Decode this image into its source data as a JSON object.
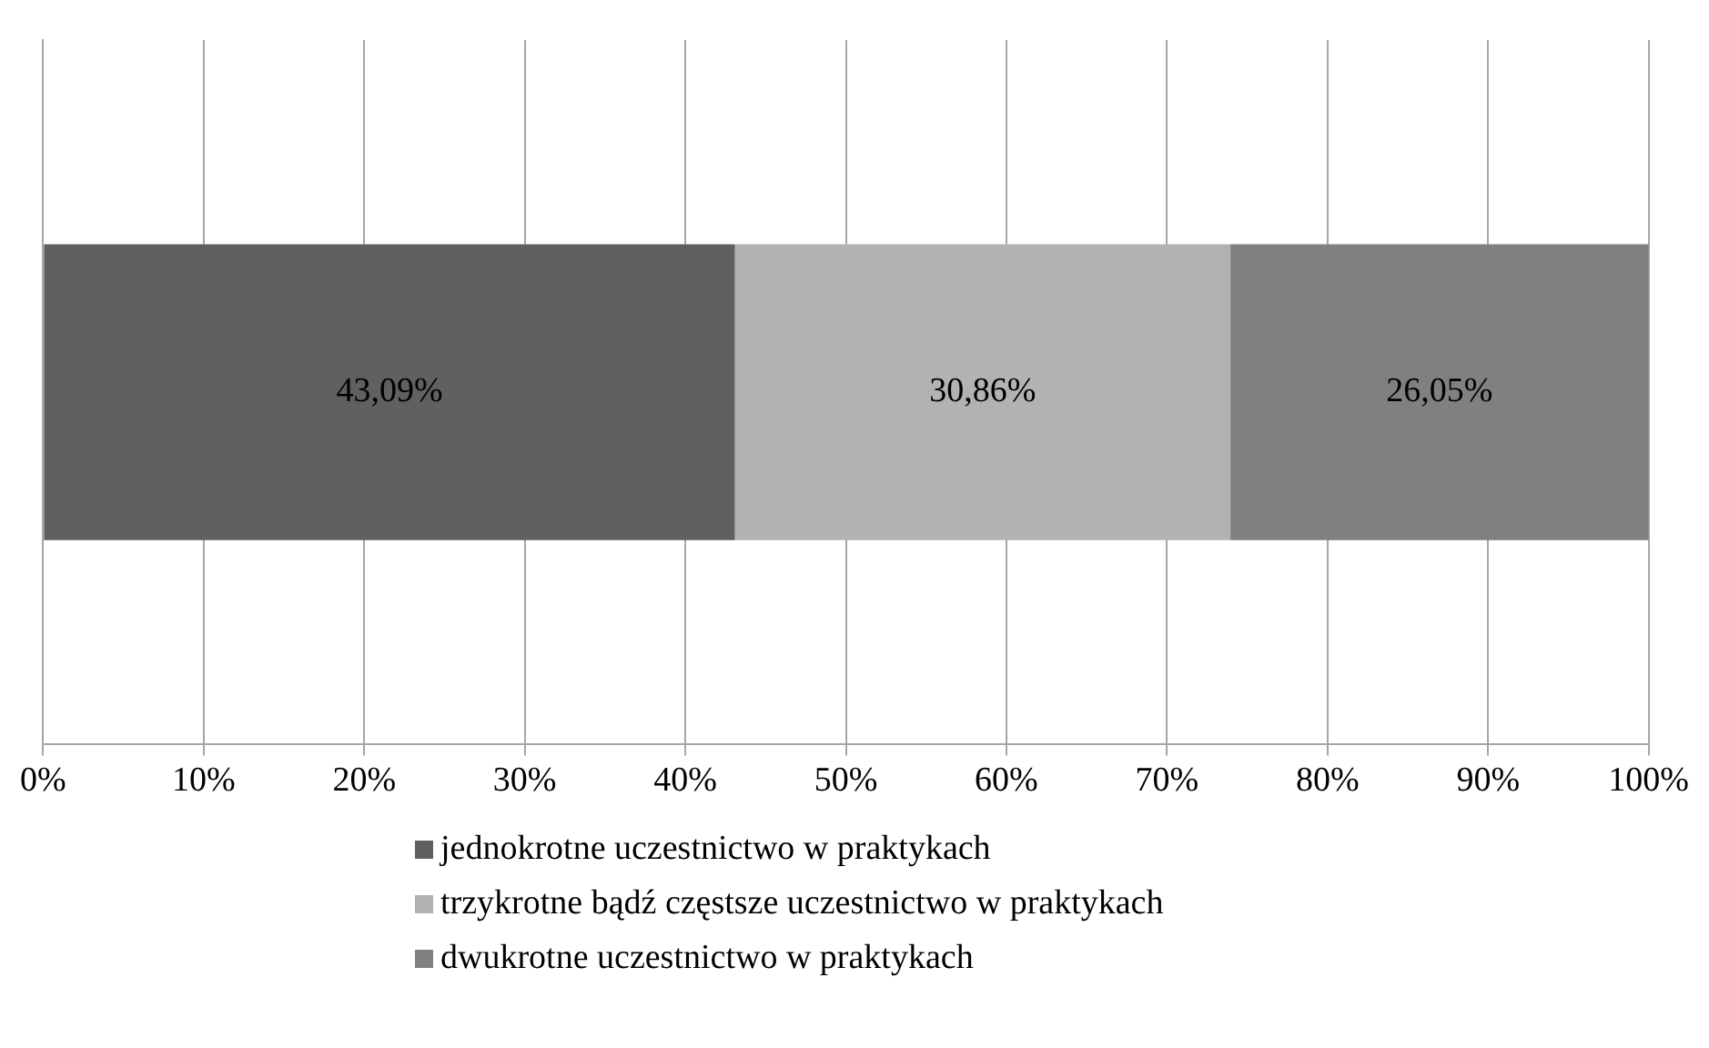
{
  "chart_data": {
    "type": "bar",
    "orientation": "horizontal",
    "stacked": true,
    "categories": [
      null
    ],
    "series": [
      {
        "name": "jednokrotne uczestnictwo w praktykach",
        "color": "#606060",
        "values": [
          43.09
        ],
        "value_labels": [
          "43,09%"
        ]
      },
      {
        "name": "trzykrotne bądź częstsze uczestnictwo w praktykach",
        "color": "#b2b2b2",
        "values": [
          30.86
        ],
        "value_labels": [
          "30,86%"
        ]
      },
      {
        "name": "dwukrotne uczestnictwo w praktykach",
        "color": "#808080",
        "values": [
          26.05
        ],
        "value_labels": [
          "26,05%"
        ]
      }
    ],
    "xlim": [
      0,
      100
    ],
    "xticks": [
      {
        "value": 0,
        "label": "0%"
      },
      {
        "value": 10,
        "label": "10%"
      },
      {
        "value": 20,
        "label": "20%"
      },
      {
        "value": 30,
        "label": "30%"
      },
      {
        "value": 40,
        "label": "40%"
      },
      {
        "value": 50,
        "label": "50%"
      },
      {
        "value": 60,
        "label": "60%"
      },
      {
        "value": 70,
        "label": "70%"
      },
      {
        "value": 80,
        "label": "80%"
      },
      {
        "value": 90,
        "label": "90%"
      },
      {
        "value": 100,
        "label": "100%"
      }
    ],
    "grid": "x",
    "legend": "bottom"
  }
}
